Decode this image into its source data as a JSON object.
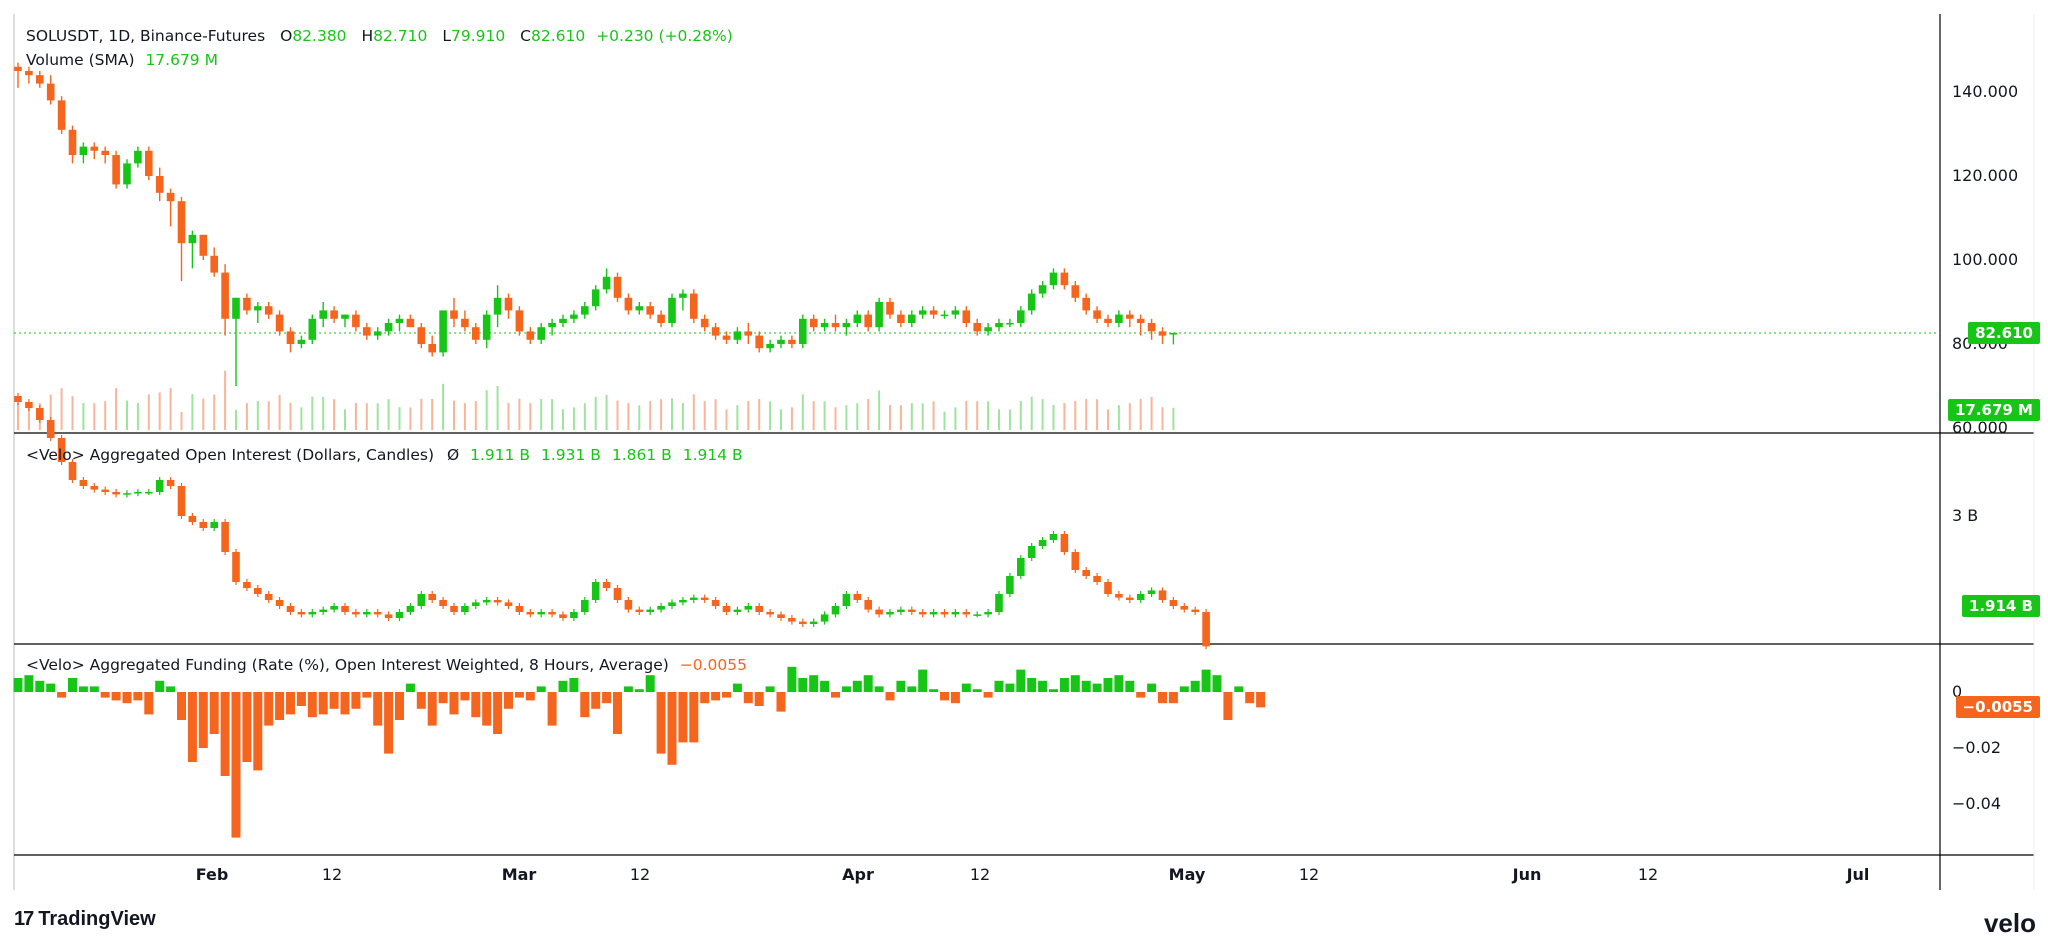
{
  "header": {
    "symbol": "SOLUSDT, 1D, Binance-Futures",
    "o_label": "O",
    "o_value": "82.380",
    "h_label": "H",
    "h_value": "82.710",
    "l_label": "L",
    "l_value": "79.910",
    "c_label": "C",
    "c_value": "82.610",
    "change": "+0.230 (+0.28%)",
    "volume_label": "Volume (SMA)",
    "volume_value": "17.679 M"
  },
  "oi_legend": {
    "title": "<Velo> Aggregated Open Interest (Dollars, Candles)",
    "symbol": "Ø",
    "values": [
      "1.911 B",
      "1.931 B",
      "1.861 B",
      "1.914 B"
    ]
  },
  "funding_legend": {
    "title": "<Velo> Aggregated Funding (Rate (%), Open Interest Weighted, 8 Hours, Average)",
    "value": "−0.0055"
  },
  "tags": {
    "price": "82.610",
    "volume": "17.679 M",
    "oi": "1.914 B",
    "funding": "−0.0055"
  },
  "axis": {
    "price_ticks": [
      "140.000",
      "120.000",
      "100.000",
      "80.000",
      "60.000"
    ],
    "oi_ticks": [
      "3 B"
    ],
    "funding_ticks": [
      "0",
      "−0.02",
      "−0.04"
    ],
    "time_ticks": [
      "Feb",
      "12",
      "Mar",
      "12",
      "Apr",
      "12",
      "May",
      "12",
      "Jun",
      "12",
      "Jul"
    ]
  },
  "colors": {
    "up": "#16c516",
    "down": "#f5651d",
    "text": "#131722",
    "grid": "#000000"
  },
  "brand": {
    "left": "TradingView",
    "right": "velo"
  },
  "chart_data": [
    {
      "type": "candlestick",
      "title": "SOLUSDT, 1D, Binance-Futures",
      "x_range": [
        "2025-01-18",
        "2025-05-28"
      ],
      "ylim": [
        60,
        150
      ],
      "ohlc": [
        [
          146,
          147,
          141,
          145
        ],
        [
          145,
          146,
          142,
          144
        ],
        [
          144,
          145,
          141,
          142
        ],
        [
          142,
          144,
          137,
          138
        ],
        [
          138,
          139,
          130,
          131
        ],
        [
          131,
          132,
          123,
          125
        ],
        [
          125,
          128,
          123,
          127
        ],
        [
          127,
          128,
          124,
          126
        ],
        [
          126,
          127,
          123,
          125
        ],
        [
          125,
          126,
          117,
          118
        ],
        [
          118,
          124,
          117,
          123
        ],
        [
          123,
          127,
          122,
          126
        ],
        [
          126,
          127,
          119,
          120
        ],
        [
          120,
          122,
          114,
          116
        ],
        [
          116,
          117,
          108,
          114
        ],
        [
          114,
          115,
          95,
          104
        ],
        [
          104,
          107,
          98,
          106
        ],
        [
          106,
          106,
          100,
          101
        ],
        [
          101,
          103,
          96,
          97
        ],
        [
          97,
          99,
          82,
          86
        ],
        [
          86,
          91,
          70,
          91
        ],
        [
          91,
          92,
          87,
          88
        ],
        [
          88,
          90,
          85,
          89
        ],
        [
          89,
          90,
          86,
          87
        ],
        [
          87,
          88,
          82,
          83
        ],
        [
          83,
          84,
          78,
          80
        ],
        [
          80,
          82,
          79,
          81
        ],
        [
          81,
          87,
          80,
          86
        ],
        [
          86,
          90,
          84,
          88
        ],
        [
          88,
          89,
          85,
          86
        ],
        [
          86,
          87,
          84,
          87
        ],
        [
          87,
          88,
          83,
          84
        ],
        [
          84,
          85,
          81,
          82
        ],
        [
          82,
          84,
          81,
          83
        ],
        [
          83,
          86,
          82,
          85
        ],
        [
          85,
          87,
          83,
          86
        ],
        [
          86,
          87,
          84,
          84
        ],
        [
          84,
          85,
          79,
          80
        ],
        [
          80,
          82,
          77,
          78
        ],
        [
          78,
          88,
          77,
          88
        ],
        [
          88,
          91,
          84,
          86
        ],
        [
          86,
          88,
          83,
          84
        ],
        [
          84,
          85,
          80,
          81
        ],
        [
          81,
          88,
          79,
          87
        ],
        [
          87,
          94,
          84,
          91
        ],
        [
          91,
          92,
          86,
          88
        ],
        [
          88,
          89,
          82,
          83
        ],
        [
          83,
          84,
          80,
          81
        ],
        [
          81,
          85,
          80,
          84
        ],
        [
          84,
          86,
          82,
          85
        ],
        [
          85,
          87,
          84,
          86
        ],
        [
          86,
          88,
          85,
          87
        ],
        [
          87,
          90,
          86,
          89
        ],
        [
          89,
          94,
          88,
          93
        ],
        [
          93,
          98,
          92,
          96
        ],
        [
          96,
          97,
          90,
          91
        ],
        [
          91,
          92,
          87,
          88
        ],
        [
          88,
          90,
          87,
          89
        ],
        [
          89,
          90,
          86,
          87
        ],
        [
          87,
          88,
          84,
          85
        ],
        [
          85,
          92,
          84,
          91
        ],
        [
          91,
          93,
          88,
          92
        ],
        [
          92,
          93,
          85,
          86
        ],
        [
          86,
          87,
          83,
          84
        ],
        [
          84,
          85,
          81,
          82
        ],
        [
          82,
          83,
          80,
          81
        ],
        [
          81,
          84,
          80,
          83
        ],
        [
          83,
          85,
          80,
          82
        ],
        [
          82,
          83,
          78,
          79
        ],
        [
          79,
          81,
          78,
          80
        ],
        [
          80,
          82,
          79,
          81
        ],
        [
          81,
          82,
          79,
          80
        ],
        [
          80,
          87,
          79,
          86
        ],
        [
          86,
          87,
          83,
          84
        ],
        [
          84,
          86,
          83,
          85
        ],
        [
          85,
          87,
          83,
          84
        ],
        [
          84,
          86,
          82,
          85
        ],
        [
          85,
          88,
          84,
          87
        ],
        [
          87,
          88,
          83,
          84
        ],
        [
          84,
          91,
          83,
          90
        ],
        [
          90,
          91,
          86,
          87
        ],
        [
          87,
          88,
          84,
          85
        ],
        [
          85,
          88,
          84,
          87
        ],
        [
          87,
          89,
          86,
          88
        ],
        [
          88,
          89,
          86,
          87
        ],
        [
          87,
          88,
          86,
          87
        ],
        [
          87,
          89,
          86,
          88
        ],
        [
          88,
          89,
          84,
          85
        ],
        [
          85,
          86,
          82,
          83
        ],
        [
          83,
          85,
          82,
          84
        ],
        [
          84,
          86,
          83,
          85
        ],
        [
          85,
          86,
          84,
          85
        ],
        [
          85,
          89,
          84,
          88
        ],
        [
          88,
          93,
          87,
          92
        ],
        [
          92,
          95,
          91,
          94
        ],
        [
          94,
          98,
          93,
          97
        ],
        [
          97,
          98,
          93,
          94
        ],
        [
          94,
          95,
          90,
          91
        ],
        [
          91,
          92,
          87,
          88
        ],
        [
          88,
          89,
          85,
          86
        ],
        [
          86,
          87,
          84,
          85
        ],
        [
          85,
          88,
          84,
          87
        ],
        [
          87,
          88,
          84,
          86
        ],
        [
          86,
          87,
          82,
          85
        ],
        [
          85,
          86,
          81,
          83
        ],
        [
          83,
          84,
          80,
          82
        ],
        [
          82.38,
          82.71,
          79.91,
          82.61
        ]
      ],
      "volume_sma": 17.679
    },
    {
      "type": "candlestick",
      "title": "<Velo> Aggregated Open Interest (Dollars, Candles)",
      "unit": "B",
      "values": [
        3.95,
        3.9,
        3.8,
        3.65,
        3.45,
        3.3,
        3.25,
        3.22,
        3.2,
        3.18,
        3.19,
        3.2,
        3.2,
        3.3,
        3.25,
        3.0,
        2.95,
        2.9,
        2.95,
        2.7,
        2.45,
        2.4,
        2.35,
        2.3,
        2.25,
        2.2,
        2.18,
        2.2,
        2.22,
        2.25,
        2.2,
        2.18,
        2.2,
        2.18,
        2.15,
        2.2,
        2.25,
        2.35,
        2.3,
        2.25,
        2.2,
        2.25,
        2.28,
        2.3,
        2.28,
        2.25,
        2.2,
        2.18,
        2.2,
        2.18,
        2.15,
        2.2,
        2.3,
        2.45,
        2.4,
        2.3,
        2.22,
        2.2,
        2.22,
        2.25,
        2.28,
        2.3,
        2.32,
        2.3,
        2.25,
        2.2,
        2.22,
        2.25,
        2.2,
        2.18,
        2.15,
        2.12,
        2.1,
        2.12,
        2.18,
        2.25,
        2.35,
        2.3,
        2.22,
        2.18,
        2.2,
        2.22,
        2.2,
        2.18,
        2.2,
        2.18,
        2.2,
        2.18,
        2.18,
        2.2,
        2.35,
        2.5,
        2.65,
        2.75,
        2.8,
        2.85,
        2.7,
        2.55,
        2.5,
        2.45,
        2.35,
        2.32,
        2.3,
        2.35,
        2.38,
        2.3,
        2.25,
        2.22,
        2.2,
        1.914
      ]
    },
    {
      "type": "bar",
      "title": "<Velo> Aggregated Funding (Rate (%), Open Interest Weighted, 8 Hours, Average)",
      "values": [
        0.005,
        0.006,
        0.004,
        0.003,
        -0.002,
        0.005,
        0.002,
        0.002,
        -0.002,
        -0.003,
        -0.004,
        -0.003,
        -0.008,
        0.004,
        0.002,
        -0.01,
        -0.025,
        -0.02,
        -0.015,
        -0.03,
        -0.052,
        -0.025,
        -0.028,
        -0.012,
        -0.01,
        -0.008,
        -0.005,
        -0.009,
        -0.008,
        -0.006,
        -0.008,
        -0.006,
        -0.002,
        -0.012,
        -0.022,
        -0.01,
        0.003,
        -0.006,
        -0.012,
        -0.004,
        -0.008,
        -0.003,
        -0.009,
        -0.012,
        -0.015,
        -0.006,
        -0.002,
        -0.003,
        0.002,
        -0.012,
        0.004,
        0.005,
        -0.009,
        -0.006,
        -0.004,
        -0.015,
        0.002,
        0.001,
        0.006,
        -0.022,
        -0.026,
        -0.018,
        -0.018,
        -0.004,
        -0.003,
        -0.002,
        0.003,
        -0.004,
        -0.005,
        0.002,
        -0.007,
        0.009,
        0.005,
        0.006,
        0.004,
        -0.002,
        0.002,
        0.004,
        0.006,
        0.002,
        -0.003,
        0.004,
        0.002,
        0.008,
        0.001,
        -0.003,
        -0.004,
        0.003,
        0.001,
        -0.002,
        0.004,
        0.003,
        0.008,
        0.005,
        0.004,
        0.001,
        0.005,
        0.006,
        0.004,
        0.003,
        0.005,
        0.006,
        0.004,
        -0.002,
        0.003,
        -0.004,
        -0.004,
        0.002,
        0.004,
        0.008,
        0.006,
        -0.01,
        0.002,
        -0.004,
        -0.0055
      ]
    }
  ]
}
